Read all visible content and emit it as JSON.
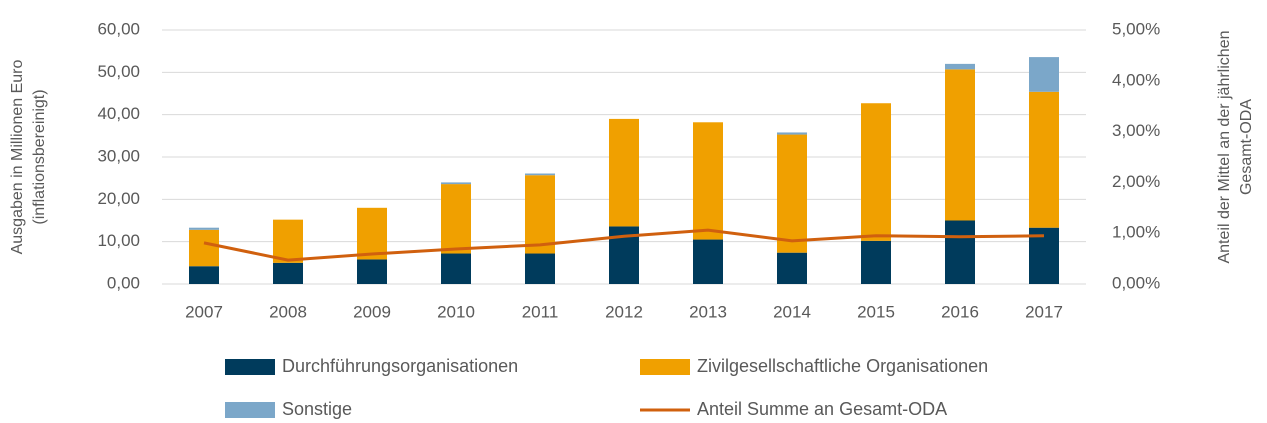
{
  "chart_data": {
    "type": "bar",
    "stacked": true,
    "legend": "bottom",
    "grid": true,
    "ylabel": [
      "Ausgaben in Millionen Euro",
      "(inflationsbereinigt)"
    ],
    "y2label": [
      "Anteil der Mittel an der jährlichen",
      "Gesamt-ODA"
    ],
    "categories": [
      "2007",
      "2008",
      "2009",
      "2010",
      "2011",
      "2012",
      "2013",
      "2014",
      "2015",
      "2016",
      "2017"
    ],
    "series": [
      {
        "name": "Durchführungsorganisationen",
        "color": "#003b5c",
        "type": "bar",
        "values": [
          4.2,
          5.0,
          5.8,
          7.2,
          7.2,
          13.6,
          10.5,
          7.4,
          10.2,
          15.0,
          13.3
        ]
      },
      {
        "name": "Zivilgesellschaftliche Organisationen",
        "color": "#f0a000",
        "type": "bar",
        "values": [
          8.6,
          10.2,
          12.2,
          16.4,
          18.5,
          25.4,
          27.7,
          27.9,
          32.5,
          35.7,
          32.1
        ]
      },
      {
        "name": "Sonstige",
        "color": "#7ba7c9",
        "type": "bar",
        "values": [
          0.5,
          0,
          0,
          0.4,
          0.4,
          0,
          0,
          0.5,
          0,
          1.3,
          8.2
        ]
      },
      {
        "name": "Anteil Summe an Gesamt-ODA",
        "color": "#d0600e",
        "type": "line",
        "axis": "y2",
        "values": [
          0.81,
          0.47,
          0.59,
          0.69,
          0.77,
          0.94,
          1.06,
          0.85,
          0.95,
          0.93,
          0.95
        ]
      }
    ],
    "ylim": [
      0,
      60
    ],
    "yticks": [
      {
        "value": 0,
        "label": "0,00"
      },
      {
        "value": 10,
        "label": "10,00"
      },
      {
        "value": 20,
        "label": "20,00"
      },
      {
        "value": 30,
        "label": "30,00"
      },
      {
        "value": 40,
        "label": "40,00"
      },
      {
        "value": 50,
        "label": "50,00"
      },
      {
        "value": 60,
        "label": "60,00"
      }
    ],
    "y2lim": [
      0,
      5
    ],
    "y2ticks": [
      {
        "value": 0,
        "label": "0,00%"
      },
      {
        "value": 1,
        "label": "1,00%"
      },
      {
        "value": 2,
        "label": "2,00%"
      },
      {
        "value": 3,
        "label": "3,00%"
      },
      {
        "value": 4,
        "label": "4,00%"
      },
      {
        "value": 5,
        "label": "5,00%"
      }
    ]
  }
}
